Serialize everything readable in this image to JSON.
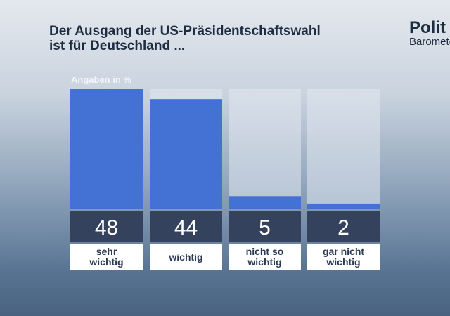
{
  "chart_data": {
    "type": "bar",
    "title": "Der Ausgang der US-Präsidentschaftswahl\nist für Deutschland ...",
    "unit_label": "Angaben in %",
    "categories": [
      "sehr\nwichtig",
      "wichtig",
      "nicht so\nwichtig",
      "gar nicht\nwichtig"
    ],
    "values": [
      48,
      44,
      5,
      2
    ],
    "ylim": [
      0,
      48
    ],
    "grid": false,
    "colors": {
      "bar": "#4472d4",
      "track": "rgba(225,232,240,0.55)",
      "value_box": "#34425e",
      "label_box": "#ffffff"
    }
  },
  "logo": {
    "line1": "Polit",
    "line2": "Barometer"
  }
}
